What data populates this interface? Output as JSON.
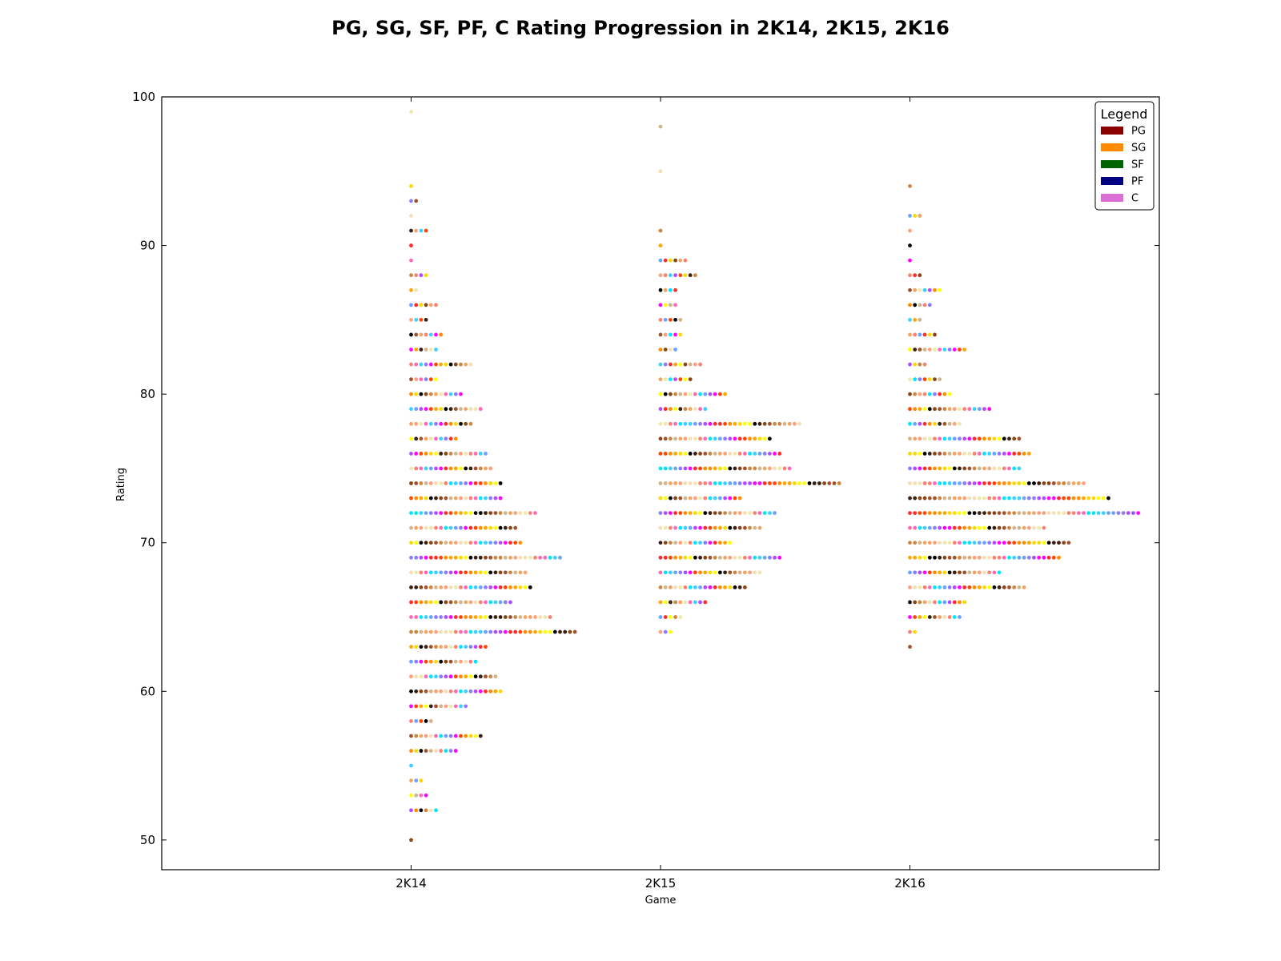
{
  "chart_data": {
    "type": "scatter",
    "title": "PG, SG, SF, PF, C Rating Progression in 2K14, 2K15, 2K16",
    "xlabel": "Game",
    "ylabel": "Rating",
    "categories": [
      "2K14",
      "2K15",
      "2K16"
    ],
    "ylim": [
      48,
      100
    ],
    "yticks": [
      50,
      60,
      70,
      80,
      90,
      100
    ],
    "grid": false,
    "legend": {
      "title": "Legend",
      "placement": "top-right",
      "entries": [
        {
          "label": "PG",
          "color": "#8b0000"
        },
        {
          "label": "SG",
          "color": "#ff8c00"
        },
        {
          "label": "SF",
          "color": "#006400"
        },
        {
          "label": "PF",
          "color": "#000080"
        },
        {
          "label": "C",
          "color": "#da70d6"
        }
      ]
    },
    "point_palette": [
      "#00e5ff",
      "#3ad0ff",
      "#6aa3ff",
      "#8a7cff",
      "#b04cff",
      "#ff00ff",
      "#ff2a2a",
      "#ff4500",
      "#ff8c00",
      "#ffa500",
      "#ffd700",
      "#ffff00",
      "#000000",
      "#3b1f10",
      "#8b4513",
      "#a0522d",
      "#cd853f",
      "#d2b48c",
      "#f4a460",
      "#ffa07a",
      "#f5deb3",
      "#eee8aa",
      "#fa8072",
      "#ff69b4"
    ],
    "series": [
      {
        "name": "2K14",
        "points_per_rating": [
          {
            "rating": 99,
            "count": 1
          },
          {
            "rating": 94,
            "count": 1
          },
          {
            "rating": 93,
            "count": 2
          },
          {
            "rating": 92,
            "count": 1
          },
          {
            "rating": 91,
            "count": 4
          },
          {
            "rating": 90,
            "count": 1
          },
          {
            "rating": 89,
            "count": 1
          },
          {
            "rating": 88,
            "count": 4
          },
          {
            "rating": 87,
            "count": 2
          },
          {
            "rating": 86,
            "count": 6
          },
          {
            "rating": 85,
            "count": 4
          },
          {
            "rating": 84,
            "count": 7
          },
          {
            "rating": 83,
            "count": 6
          },
          {
            "rating": 82,
            "count": 13
          },
          {
            "rating": 81,
            "count": 6
          },
          {
            "rating": 80,
            "count": 11
          },
          {
            "rating": 79,
            "count": 15
          },
          {
            "rating": 78,
            "count": 13
          },
          {
            "rating": 77,
            "count": 10
          },
          {
            "rating": 76,
            "count": 16
          },
          {
            "rating": 75,
            "count": 17
          },
          {
            "rating": 74,
            "count": 19
          },
          {
            "rating": 73,
            "count": 19
          },
          {
            "rating": 72,
            "count": 26
          },
          {
            "rating": 71,
            "count": 22
          },
          {
            "rating": 70,
            "count": 23
          },
          {
            "rating": 69,
            "count": 31
          },
          {
            "rating": 68,
            "count": 24
          },
          {
            "rating": 67,
            "count": 25
          },
          {
            "rating": 66,
            "count": 21
          },
          {
            "rating": 65,
            "count": 29
          },
          {
            "rating": 64,
            "count": 34
          },
          {
            "rating": 63,
            "count": 16
          },
          {
            "rating": 62,
            "count": 14
          },
          {
            "rating": 61,
            "count": 18
          },
          {
            "rating": 60,
            "count": 19
          },
          {
            "rating": 59,
            "count": 12
          },
          {
            "rating": 58,
            "count": 5
          },
          {
            "rating": 57,
            "count": 15
          },
          {
            "rating": 56,
            "count": 10
          },
          {
            "rating": 55,
            "count": 1
          },
          {
            "rating": 54,
            "count": 3
          },
          {
            "rating": 53,
            "count": 4
          },
          {
            "rating": 52,
            "count": 6
          },
          {
            "rating": 50,
            "count": 1
          }
        ]
      },
      {
        "name": "2K15",
        "points_per_rating": [
          {
            "rating": 98,
            "count": 1
          },
          {
            "rating": 95,
            "count": 1
          },
          {
            "rating": 91,
            "count": 1
          },
          {
            "rating": 90,
            "count": 1
          },
          {
            "rating": 89,
            "count": 6
          },
          {
            "rating": 88,
            "count": 8
          },
          {
            "rating": 87,
            "count": 4
          },
          {
            "rating": 86,
            "count": 4
          },
          {
            "rating": 85,
            "count": 5
          },
          {
            "rating": 84,
            "count": 5
          },
          {
            "rating": 83,
            "count": 4
          },
          {
            "rating": 82,
            "count": 9
          },
          {
            "rating": 81,
            "count": 7
          },
          {
            "rating": 80,
            "count": 14
          },
          {
            "rating": 79,
            "count": 10
          },
          {
            "rating": 78,
            "count": 29
          },
          {
            "rating": 77,
            "count": 23
          },
          {
            "rating": 76,
            "count": 25
          },
          {
            "rating": 75,
            "count": 27
          },
          {
            "rating": 74,
            "count": 37
          },
          {
            "rating": 73,
            "count": 17
          },
          {
            "rating": 72,
            "count": 24
          },
          {
            "rating": 71,
            "count": 21
          },
          {
            "rating": 70,
            "count": 15
          },
          {
            "rating": 69,
            "count": 25
          },
          {
            "rating": 68,
            "count": 21
          },
          {
            "rating": 67,
            "count": 18
          },
          {
            "rating": 66,
            "count": 10
          },
          {
            "rating": 65,
            "count": 5
          },
          {
            "rating": 64,
            "count": 3
          }
        ]
      },
      {
        "name": "2K16",
        "points_per_rating": [
          {
            "rating": 94,
            "count": 1
          },
          {
            "rating": 92,
            "count": 3
          },
          {
            "rating": 91,
            "count": 1
          },
          {
            "rating": 90,
            "count": 1
          },
          {
            "rating": 89,
            "count": 1
          },
          {
            "rating": 88,
            "count": 3
          },
          {
            "rating": 87,
            "count": 7
          },
          {
            "rating": 86,
            "count": 5
          },
          {
            "rating": 85,
            "count": 3
          },
          {
            "rating": 84,
            "count": 6
          },
          {
            "rating": 83,
            "count": 12
          },
          {
            "rating": 82,
            "count": 4
          },
          {
            "rating": 81,
            "count": 7
          },
          {
            "rating": 80,
            "count": 9
          },
          {
            "rating": 79,
            "count": 17
          },
          {
            "rating": 78,
            "count": 11
          },
          {
            "rating": 77,
            "count": 23
          },
          {
            "rating": 76,
            "count": 25
          },
          {
            "rating": 75,
            "count": 23
          },
          {
            "rating": 74,
            "count": 36
          },
          {
            "rating": 73,
            "count": 41
          },
          {
            "rating": 72,
            "count": 47
          },
          {
            "rating": 71,
            "count": 28
          },
          {
            "rating": 70,
            "count": 33
          },
          {
            "rating": 69,
            "count": 31
          },
          {
            "rating": 68,
            "count": 19
          },
          {
            "rating": 67,
            "count": 24
          },
          {
            "rating": 66,
            "count": 12
          },
          {
            "rating": 65,
            "count": 11
          },
          {
            "rating": 64,
            "count": 2
          },
          {
            "rating": 63,
            "count": 1
          }
        ]
      }
    ]
  }
}
